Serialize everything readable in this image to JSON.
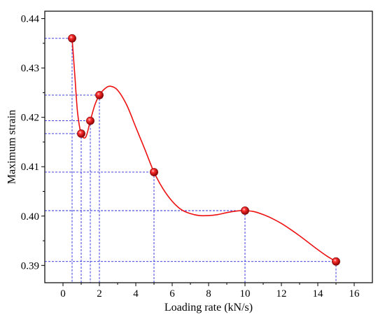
{
  "chart_data": {
    "type": "scatter",
    "xlabel": "Loading rate (kN/s)",
    "ylabel": "Maximum strain",
    "xlim": [
      -1.0,
      17.0
    ],
    "ylim": [
      0.3865,
      0.4415
    ],
    "x_ticks": [
      0,
      2,
      4,
      6,
      8,
      10,
      12,
      14,
      16
    ],
    "y_ticks": [
      0.39,
      0.4,
      0.41,
      0.42,
      0.43,
      0.44
    ],
    "x_tick_labels": [
      "0",
      "2",
      "4",
      "6",
      "8",
      "10",
      "12",
      "14",
      "16"
    ],
    "y_tick_labels": [
      "0.39",
      "0.40",
      "0.41",
      "0.42",
      "0.43",
      "0.44"
    ],
    "series": [
      {
        "x": [
          0.5,
          1.0,
          1.5,
          2.0,
          5.0,
          10.0,
          15.0
        ],
        "y": [
          0.436,
          0.4167,
          0.4193,
          0.4245,
          0.4089,
          0.4011,
          0.3908
        ]
      }
    ],
    "fit_curve": {
      "x": [
        0.5,
        0.65,
        0.8,
        1.0,
        1.25,
        1.5,
        1.75,
        2.0,
        2.3,
        2.6,
        3.0,
        3.5,
        4.0,
        4.5,
        5.0,
        5.5,
        6.0,
        6.5,
        7.0,
        7.5,
        8.0,
        8.5,
        9.0,
        9.5,
        10.0,
        10.5,
        11.0,
        11.5,
        12.0,
        12.5,
        13.0,
        13.5,
        14.0,
        14.5,
        15.0
      ],
      "y": [
        0.436,
        0.4285,
        0.421,
        0.4167,
        0.416,
        0.4193,
        0.4225,
        0.4245,
        0.4258,
        0.4263,
        0.4255,
        0.4225,
        0.418,
        0.4135,
        0.4089,
        0.4055,
        0.403,
        0.4013,
        0.4005,
        0.4001,
        0.4001,
        0.4003,
        0.4007,
        0.401,
        0.4011,
        0.4009,
        0.4003,
        0.3995,
        0.3985,
        0.3973,
        0.396,
        0.3946,
        0.3932,
        0.3919,
        0.3908
      ]
    },
    "grid": false,
    "guide_lines": true,
    "legend": false,
    "colors": {
      "curve": "#ee1111",
      "marker": "#dd0000",
      "guide": "#2b2bdd",
      "axis": "#000000"
    }
  }
}
